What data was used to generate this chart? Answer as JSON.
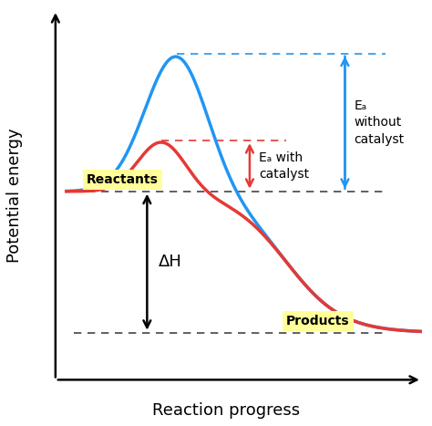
{
  "xlabel": "Reaction progress",
  "ylabel": "Potential energy",
  "reactant_energy": 0.52,
  "product_energy": 0.13,
  "blue_peak": 0.9,
  "red_peak": 0.66,
  "blue_color": "#2196F3",
  "red_color": "#E53935",
  "black_color": "#000000",
  "dark_gray": "#444444",
  "reactant_label": "Reactants",
  "product_label": "Products",
  "ea_with_label": "Eₐ with\ncatalyst",
  "ea_without_label": "Eₐ\nwithout\ncatalyst",
  "dH_label": "ΔH",
  "background": "#ffffff",
  "figsize": [
    4.74,
    4.67
  ],
  "dpi": 100
}
